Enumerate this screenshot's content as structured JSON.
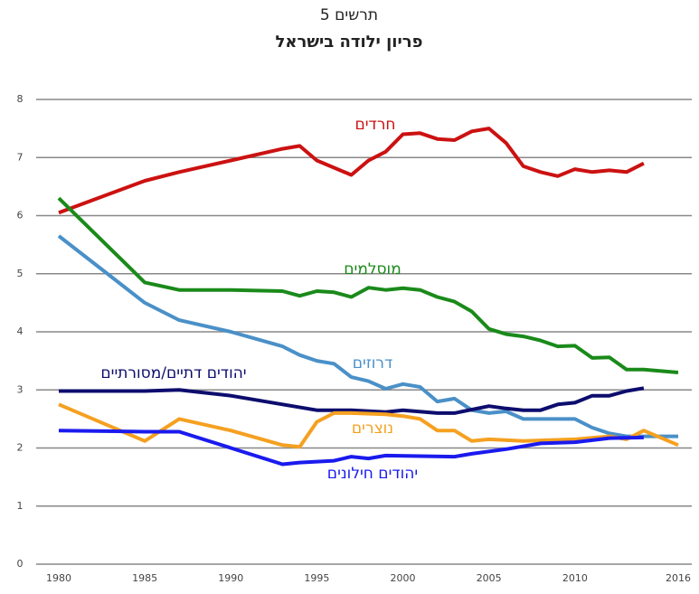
{
  "chart_data": {
    "type": "line",
    "title": "תרשים 5",
    "subtitle": "פריון ילודה בישראל",
    "xlim": [
      1980,
      2016
    ],
    "xticks": [
      1980,
      1985,
      1990,
      1995,
      2000,
      2005,
      2010,
      2016
    ],
    "ylim": [
      0,
      8
    ],
    "yticks": [
      0,
      1,
      2,
      3,
      4,
      5,
      6,
      7,
      8
    ],
    "grid": true,
    "series": [
      {
        "name": "חרדים",
        "color": "#cc1111",
        "x": [
          1980,
          1985,
          1987,
          1990,
          1993,
          1994,
          1995,
          1997,
          1998,
          1999,
          2000,
          2001,
          2002,
          2003,
          2004,
          2005,
          2006,
          2007,
          2008,
          2009,
          2010,
          2011,
          2012,
          2013,
          2014
        ],
        "values": [
          6.05,
          6.6,
          6.75,
          6.95,
          7.15,
          7.2,
          6.95,
          6.7,
          6.95,
          7.1,
          7.4,
          7.42,
          7.32,
          7.3,
          7.45,
          7.5,
          7.25,
          6.85,
          6.75,
          6.68,
          6.8,
          6.75,
          6.78,
          6.75,
          6.9
        ]
      },
      {
        "name": "מוסלמים",
        "color": "#1a8a1a",
        "x": [
          1980,
          1985,
          1987,
          1990,
          1993,
          1994,
          1995,
          1996,
          1997,
          1998,
          1999,
          2000,
          2001,
          2002,
          2003,
          2004,
          2005,
          2006,
          2007,
          2008,
          2009,
          2010,
          2011,
          2012,
          2013,
          2014,
          2016
        ],
        "values": [
          6.3,
          4.85,
          4.72,
          4.72,
          4.7,
          4.62,
          4.7,
          4.68,
          4.6,
          4.76,
          4.72,
          4.75,
          4.72,
          4.6,
          4.52,
          4.35,
          4.05,
          3.96,
          3.92,
          3.85,
          3.75,
          3.76,
          3.55,
          3.56,
          3.35,
          3.35,
          3.3
        ]
      },
      {
        "name": "דרוזים",
        "color": "#4a90c8",
        "x": [
          1980,
          1985,
          1987,
          1990,
          1993,
          1994,
          1995,
          1996,
          1997,
          1998,
          1999,
          2000,
          2001,
          2002,
          2003,
          2004,
          2005,
          2006,
          2007,
          2008,
          2009,
          2010,
          2011,
          2012,
          2013,
          2014,
          2016
        ],
        "values": [
          5.65,
          4.5,
          4.2,
          4.0,
          3.75,
          3.6,
          3.5,
          3.45,
          3.22,
          3.15,
          3.02,
          3.1,
          3.05,
          2.8,
          2.85,
          2.65,
          2.6,
          2.63,
          2.5,
          2.5,
          2.5,
          2.5,
          2.35,
          2.25,
          2.2,
          2.2,
          2.2
        ]
      },
      {
        "name": "יהודים דתיים/מסורתיים",
        "color": "#0d0d6e",
        "x": [
          1980,
          1985,
          1987,
          1990,
          1993,
          1995,
          1997,
          1999,
          2000,
          2002,
          2003,
          2005,
          2006,
          2007,
          2008,
          2009,
          2010,
          2011,
          2012,
          2013,
          2014
        ],
        "values": [
          2.98,
          2.98,
          3.0,
          2.9,
          2.75,
          2.65,
          2.65,
          2.62,
          2.65,
          2.6,
          2.6,
          2.72,
          2.68,
          2.65,
          2.65,
          2.75,
          2.78,
          2.9,
          2.9,
          2.98,
          3.03
        ]
      },
      {
        "name": "נוצרים",
        "color": "#f5a020",
        "x": [
          1980,
          1985,
          1987,
          1990,
          1993,
          1994,
          1995,
          1996,
          1997,
          1999,
          2000,
          2001,
          2002,
          2003,
          2004,
          2005,
          2007,
          2010,
          2012,
          2013,
          2014,
          2016
        ],
        "values": [
          2.75,
          2.12,
          2.5,
          2.3,
          2.05,
          2.02,
          2.45,
          2.6,
          2.6,
          2.58,
          2.55,
          2.5,
          2.3,
          2.3,
          2.12,
          2.15,
          2.12,
          2.15,
          2.2,
          2.15,
          2.3,
          2.05
        ]
      },
      {
        "name": "יהודים חילונים",
        "color": "#1a1aee",
        "x": [
          1980,
          1985,
          1987,
          1990,
          1993,
          1994,
          1996,
          1997,
          1998,
          1999,
          2003,
          2004,
          2006,
          2008,
          2010,
          2012,
          2014
        ],
        "values": [
          2.3,
          2.28,
          2.28,
          2.0,
          1.72,
          1.75,
          1.78,
          1.85,
          1.82,
          1.87,
          1.85,
          1.9,
          1.98,
          2.08,
          2.1,
          2.17,
          2.18
        ]
      }
    ]
  }
}
